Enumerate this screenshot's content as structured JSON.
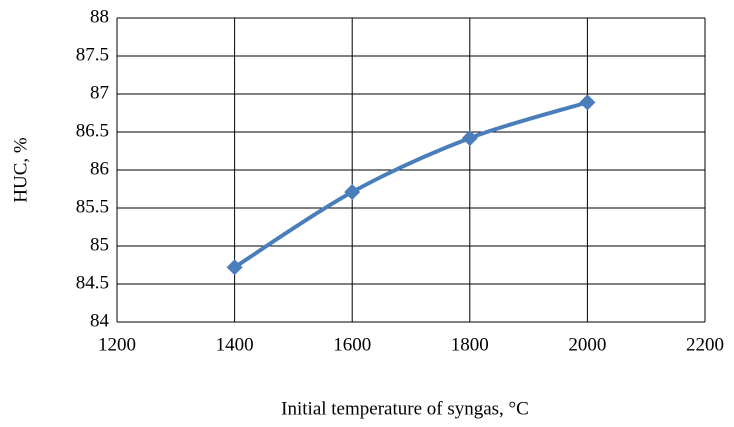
{
  "chart_data": {
    "type": "line",
    "x_label": "Initial temperature of syngas, °C",
    "y_label": "HUC, %",
    "x": [
      1400,
      1600,
      1800,
      2000
    ],
    "series": [
      {
        "color": "#4a7ebb",
        "values": [
          84.72,
          85.71,
          86.42,
          86.89
        ]
      }
    ],
    "xlim": [
      1200,
      2200
    ],
    "xticks": [
      1200,
      1400,
      1600,
      1800,
      2000,
      2200
    ],
    "ylim": [
      84,
      88
    ],
    "yticks": [
      84,
      84.5,
      85,
      85.5,
      86,
      86.5,
      87,
      87.5,
      88
    ],
    "grid": true,
    "smooth": true,
    "markers": "diamond"
  }
}
